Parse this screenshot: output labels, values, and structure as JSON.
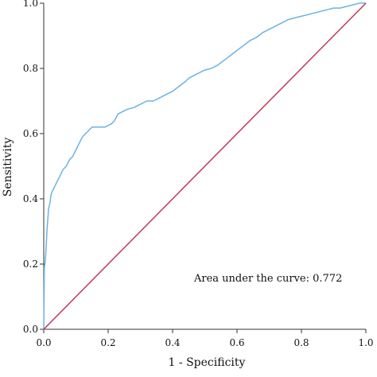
{
  "chart_data": {
    "type": "line",
    "xlabel": "1 - Specificity",
    "ylabel": "Sensitivity",
    "xlim": [
      0,
      1
    ],
    "ylim": [
      0,
      1
    ],
    "x_ticks": [
      "0.0",
      "0.2",
      "0.4",
      "0.6",
      "0.8",
      "1.0"
    ],
    "y_ticks": [
      "0.0",
      "0.2",
      "0.4",
      "0.6",
      "0.8",
      "1.0"
    ],
    "annotation": "Area under the curve: 0.772",
    "grid": false,
    "series": [
      {
        "color": "#6ab3e3",
        "x": [
          0,
          0.002,
          0.005,
          0.008,
          0.01,
          0.012,
          0.015,
          0.02,
          0.022,
          0.025,
          0.03,
          0.035,
          0.04,
          0.05,
          0.06,
          0.07,
          0.08,
          0.09,
          0.1,
          0.11,
          0.12,
          0.13,
          0.14,
          0.15,
          0.17,
          0.19,
          0.21,
          0.22,
          0.23,
          0.24,
          0.26,
          0.28,
          0.3,
          0.32,
          0.34,
          0.36,
          0.38,
          0.4,
          0.42,
          0.44,
          0.45,
          0.46,
          0.48,
          0.5,
          0.52,
          0.54,
          0.56,
          0.58,
          0.6,
          0.62,
          0.64,
          0.66,
          0.68,
          0.7,
          0.72,
          0.74,
          0.76,
          0.78,
          0.8,
          0.82,
          0.84,
          0.86,
          0.88,
          0.9,
          0.92,
          0.94,
          0.96,
          0.98,
          1.0
        ],
        "y": [
          0.0,
          0.19,
          0.21,
          0.26,
          0.3,
          0.33,
          0.37,
          0.39,
          0.41,
          0.42,
          0.43,
          0.44,
          0.45,
          0.47,
          0.49,
          0.5,
          0.52,
          0.53,
          0.55,
          0.57,
          0.59,
          0.6,
          0.61,
          0.62,
          0.62,
          0.62,
          0.63,
          0.64,
          0.66,
          0.665,
          0.675,
          0.68,
          0.69,
          0.7,
          0.7,
          0.71,
          0.72,
          0.73,
          0.745,
          0.76,
          0.77,
          0.775,
          0.785,
          0.795,
          0.8,
          0.81,
          0.825,
          0.84,
          0.855,
          0.87,
          0.885,
          0.895,
          0.91,
          0.92,
          0.93,
          0.94,
          0.95,
          0.955,
          0.96,
          0.965,
          0.97,
          0.975,
          0.98,
          0.985,
          0.985,
          0.99,
          0.995,
          1.0,
          1.0
        ]
      },
      {
        "color": "#c2385a",
        "x": [
          0,
          1
        ],
        "y": [
          0,
          1
        ]
      }
    ]
  }
}
